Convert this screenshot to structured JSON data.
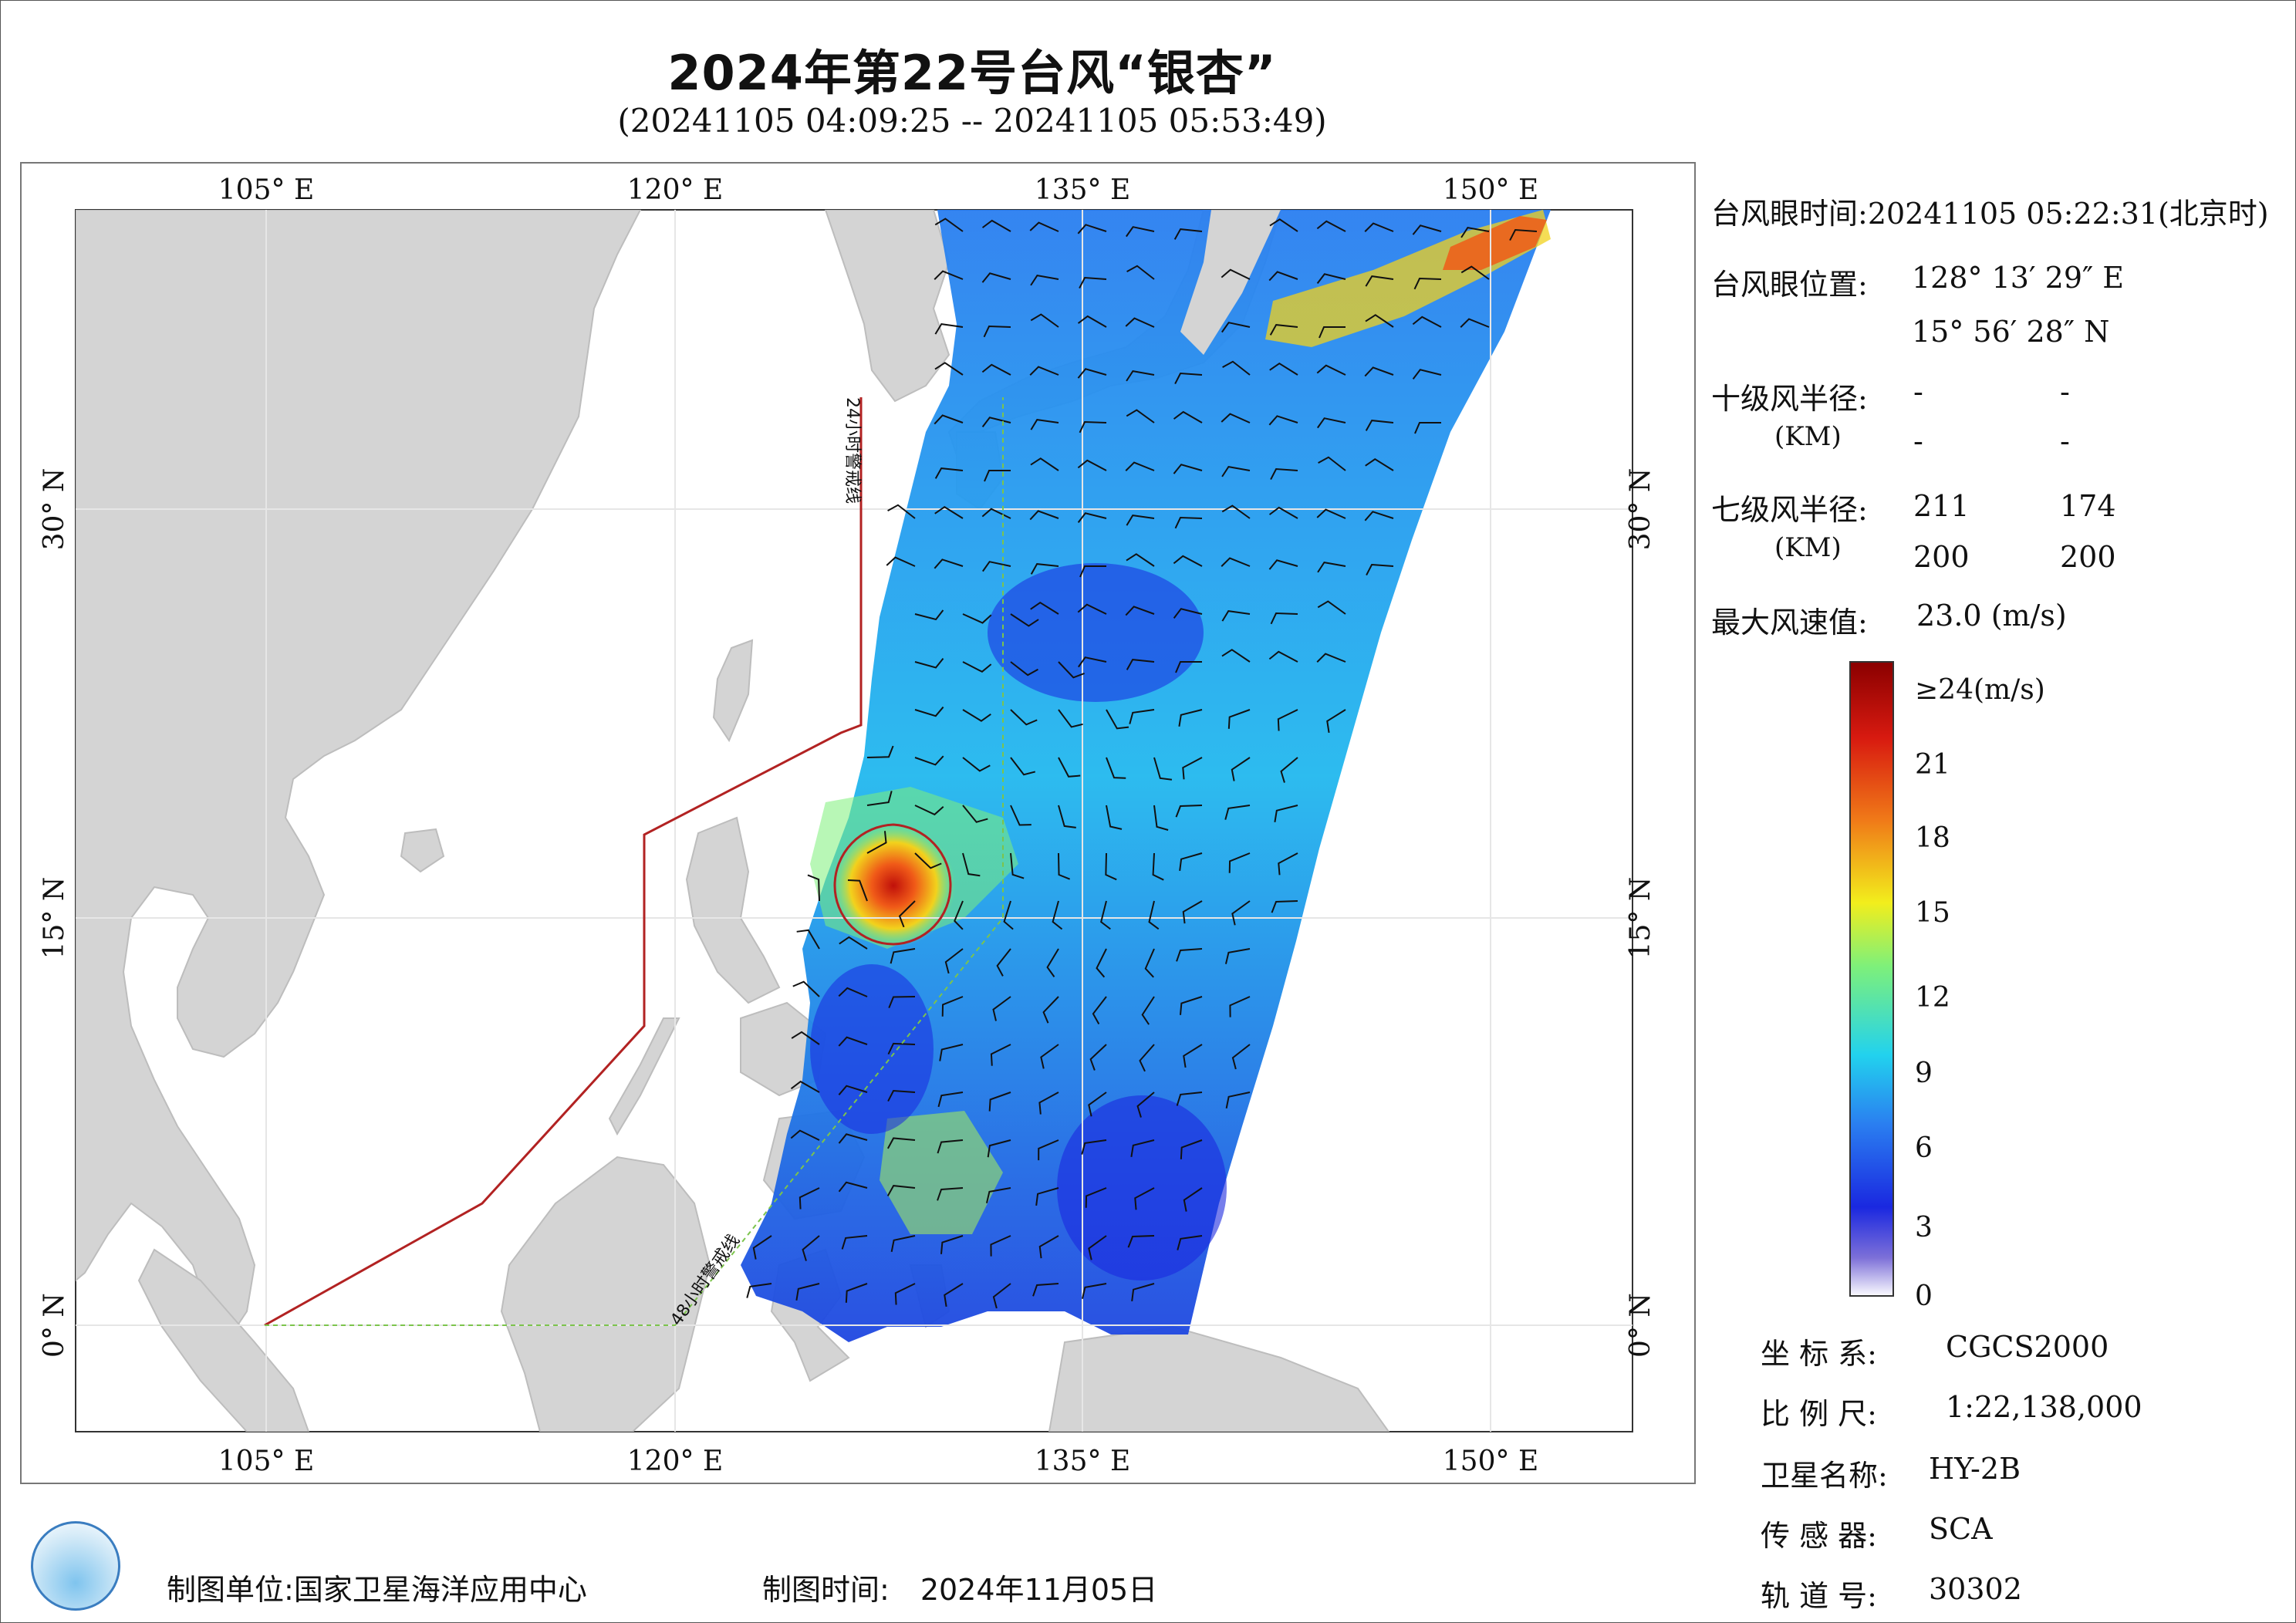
{
  "title": "2024年第22号台风“银杏”",
  "subtitle": "(20241105 04:09:25 -- 20241105 05:53:49)",
  "map": {
    "lon_ticks": [
      "105° E",
      "120° E",
      "135° E",
      "150° E"
    ],
    "lat_ticks": [
      "30° N",
      "15° N",
      "0° N"
    ],
    "line_24h": "24小时警戒线",
    "line_48h": "48小时警戒线",
    "colors": {
      "land": "#d4d4d4",
      "sea": "#ffffff",
      "warn24": "#b22222",
      "warn48": "#7cc44c",
      "typhoon_circle": "#b22222"
    }
  },
  "info": {
    "eye_time_label": "台风眼时间:",
    "eye_time": "20241105 05:22:31(北京时)",
    "eye_pos_label": "台风眼位置:",
    "eye_lon": "128° 13′ 29″ E",
    "eye_lat": "15° 56′ 28″ N",
    "r10_label": "十级风半径:",
    "r10_unit": "(KM)",
    "r10": [
      "-",
      "-",
      "-",
      "-"
    ],
    "r7_label": "七级风半径:",
    "r7_unit": "(KM)",
    "r7": [
      "211",
      "174",
      "200",
      "200"
    ],
    "max_label": "最大风速值:",
    "max_value": "23.0 (m/s)"
  },
  "colorbar": {
    "labels": [
      "≥24(m/s)",
      "21",
      "18",
      "15",
      "12",
      "9",
      "6",
      "3",
      "0"
    ],
    "stops": [
      "#fbfbff",
      "#7d70d8",
      "#1a28e0",
      "#2a7ef0",
      "#22d2ee",
      "#7ef07a",
      "#f2ee1c",
      "#f07a18",
      "#d81a10",
      "#8a0000"
    ]
  },
  "meta": {
    "crs_label": "坐 标 系:",
    "crs": "CGCS2000",
    "scale_label": "比 例 尺:",
    "scale": "1:22,138,000",
    "sat_label": "卫星名称:",
    "sat": "HY-2B",
    "sensor_label": "传 感 器:",
    "sensor": "SCA",
    "orbit_label": "轨 道 号:",
    "orbit": "30302"
  },
  "footer": {
    "unit_label": "制图单位:",
    "unit": "国家卫星海洋应用中心",
    "time_label": "制图时间:",
    "time": "2024年11月05日"
  }
}
